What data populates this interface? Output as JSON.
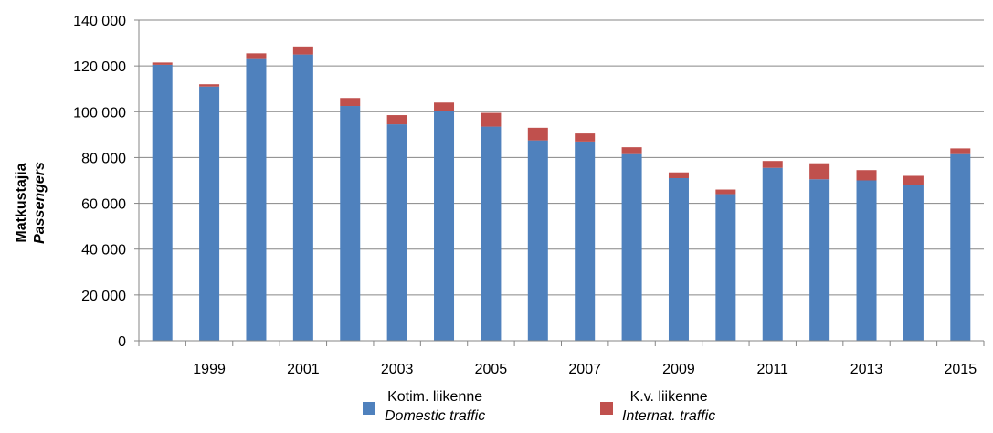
{
  "chart_data": {
    "type": "bar",
    "stacked": true,
    "years": [
      1998,
      1999,
      2000,
      2001,
      2002,
      2003,
      2004,
      2005,
      2006,
      2007,
      2008,
      2009,
      2010,
      2011,
      2012,
      2013,
      2014,
      2015
    ],
    "x_tick_labels": [
      "1999",
      "2001",
      "2003",
      "2005",
      "2007",
      "2009",
      "2011",
      "2013",
      "2015"
    ],
    "y_tick_labels": [
      "0",
      "20 000",
      "40 000",
      "60 000",
      "80 000",
      "100 000",
      "120 000",
      "140 000"
    ],
    "ylim": [
      0,
      140000
    ],
    "ylabel": "Matkustajia",
    "ylabel_sub": "Passengers",
    "grid": true,
    "legend_position": "bottom",
    "series": [
      {
        "name": "Kotim. liikenne",
        "name_sub": "Domestic traffic",
        "color": "#4F81BD",
        "values": [
          120500,
          111000,
          123000,
          125000,
          102500,
          94500,
          100500,
          93500,
          87500,
          87000,
          81500,
          71000,
          64000,
          75500,
          70500,
          70000,
          68000,
          81500
        ]
      },
      {
        "name": "K.v. liikenne",
        "name_sub": "Internat. traffic",
        "color": "#C0504D",
        "values": [
          1000,
          1000,
          2500,
          3500,
          3500,
          4000,
          3500,
          6000,
          5500,
          3500,
          3000,
          2500,
          2000,
          3000,
          7000,
          4500,
          4000,
          2500
        ]
      }
    ]
  }
}
